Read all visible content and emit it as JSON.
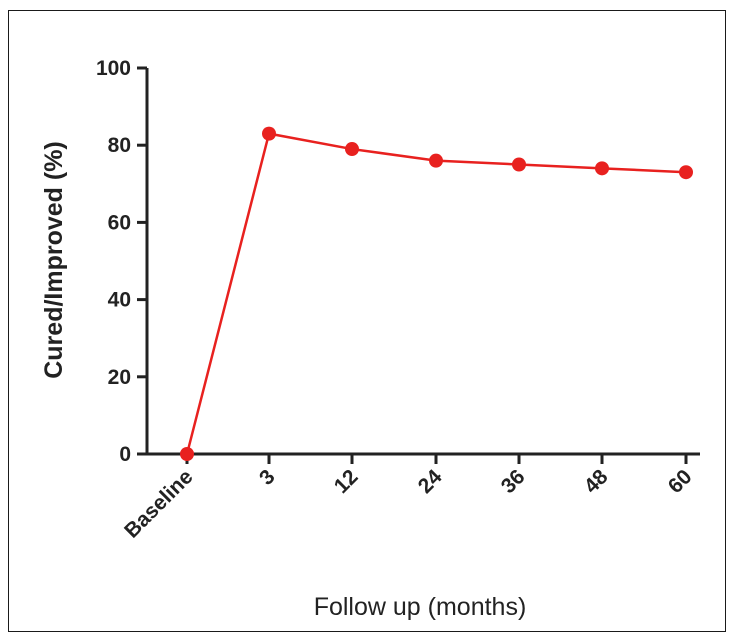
{
  "chart_data": {
    "type": "line",
    "title": "",
    "xlabel": "Follow up (months)",
    "ylabel": "Cured/Improved (%)",
    "categories": [
      "Baseline",
      "3",
      "12",
      "24",
      "36",
      "48",
      "60"
    ],
    "series": [
      {
        "values": [
          0,
          83,
          79,
          76,
          75,
          74,
          73
        ]
      }
    ],
    "ylim": [
      0,
      100
    ],
    "yticks": [
      0,
      20,
      40,
      60,
      80,
      100
    ],
    "grid": false,
    "legend": "none",
    "colors": {
      "series": "#e8211f",
      "axis": "#222222"
    }
  }
}
